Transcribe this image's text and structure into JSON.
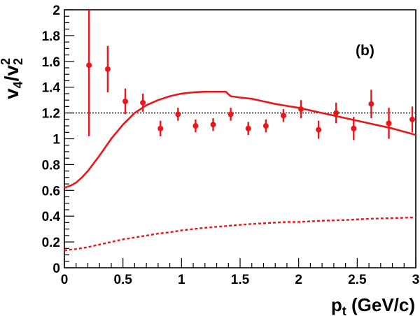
{
  "chart_data": {
    "type": "scatter",
    "xlabel": {
      "main": "p",
      "sub": "t",
      "rest": " (GeV/c)"
    },
    "ylabel": {
      "a": "v",
      "a_sub": "4",
      "slash": "/",
      "b": "v",
      "b_sup": "2",
      "b_sub": "2"
    },
    "panel_label": "(b)",
    "xlim": [
      0,
      3
    ],
    "ylim": [
      0,
      2
    ],
    "x_ticks": [
      "0",
      "0.5",
      "1",
      "1.5",
      "2",
      "2.5",
      "3"
    ],
    "y_ticks": [
      "0",
      "0.2",
      "0.4",
      "0.6",
      "0.8",
      "1",
      "1.2",
      "1.4",
      "1.6",
      "1.8",
      "2"
    ],
    "grid": false,
    "colors": {
      "data": "#e8171c",
      "axis": "#000000",
      "reference": "#000000"
    },
    "reference_line": {
      "y": 1.2,
      "style": "dotted"
    },
    "series": [
      {
        "kind": "points-with-errors",
        "x": [
          0.21,
          0.37,
          0.52,
          0.67,
          0.82,
          0.97,
          1.12,
          1.27,
          1.42,
          1.57,
          1.72,
          1.87,
          2.02,
          2.17,
          2.32,
          2.47,
          2.62,
          2.77,
          2.97
        ],
        "y": [
          1.57,
          1.54,
          1.29,
          1.28,
          1.08,
          1.19,
          1.1,
          1.11,
          1.19,
          1.08,
          1.1,
          1.18,
          1.23,
          1.07,
          1.2,
          1.08,
          1.27,
          1.12,
          1.15
        ],
        "err": [
          0.55,
          0.18,
          0.1,
          0.07,
          0.06,
          0.05,
          0.05,
          0.05,
          0.05,
          0.05,
          0.05,
          0.05,
          0.07,
          0.07,
          0.08,
          0.09,
          0.11,
          0.12,
          0.1
        ]
      },
      {
        "kind": "line-solid",
        "x": [
          0.0,
          0.05,
          0.1,
          0.15,
          0.2,
          0.3,
          0.4,
          0.5,
          0.6,
          0.7,
          0.8,
          0.9,
          1.0,
          1.1,
          1.2,
          1.3,
          1.35,
          1.38,
          1.4,
          1.42,
          1.5,
          1.6,
          1.7,
          1.8,
          1.9,
          2.0,
          2.2,
          2.4,
          2.6,
          2.8,
          3.0
        ],
        "y": [
          0.62,
          0.635,
          0.66,
          0.7,
          0.75,
          0.87,
          1.0,
          1.11,
          1.2,
          1.26,
          1.3,
          1.33,
          1.35,
          1.36,
          1.365,
          1.365,
          1.365,
          1.364,
          1.345,
          1.33,
          1.32,
          1.31,
          1.29,
          1.27,
          1.255,
          1.24,
          1.2,
          1.16,
          1.12,
          1.08,
          1.03
        ]
      },
      {
        "kind": "line-dashed",
        "x": [
          0.0,
          0.1,
          0.2,
          0.3,
          0.4,
          0.5,
          0.6,
          0.7,
          0.8,
          0.9,
          1.0,
          1.2,
          1.4,
          1.6,
          1.8,
          1.9,
          2.0,
          2.2,
          2.4,
          2.6,
          2.8,
          3.0
        ],
        "y": [
          0.135,
          0.145,
          0.16,
          0.18,
          0.2,
          0.22,
          0.235,
          0.25,
          0.265,
          0.275,
          0.29,
          0.31,
          0.325,
          0.34,
          0.35,
          0.355,
          0.355,
          0.365,
          0.37,
          0.38,
          0.385,
          0.39
        ]
      }
    ]
  }
}
